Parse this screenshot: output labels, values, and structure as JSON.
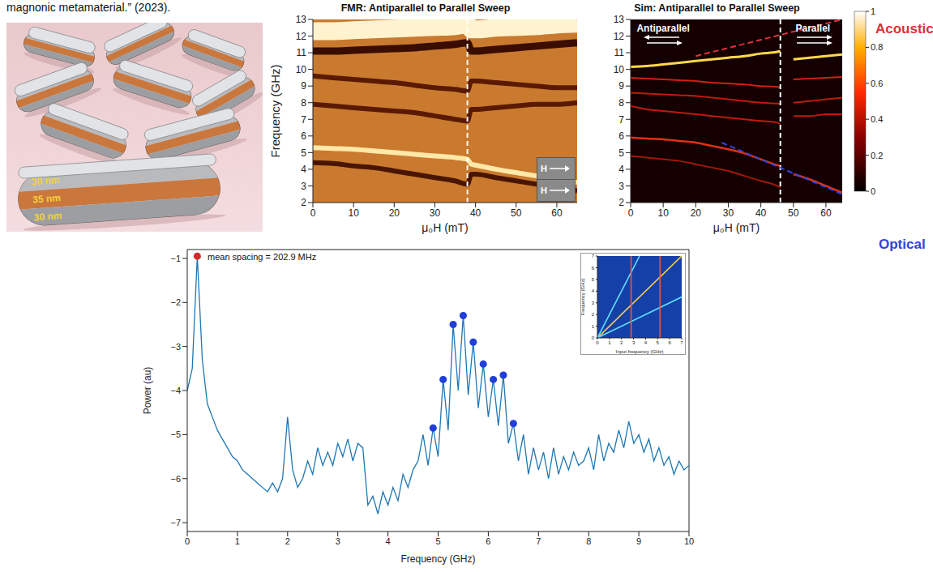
{
  "caption": "magnonic metamaterial.” (2023).",
  "image": {
    "layer_labels": [
      "30 nm",
      "35 nm",
      "30 nm"
    ]
  },
  "chart_data": [
    {
      "type": "line",
      "title": "FMR: Antiparallel to Parallel Sweep",
      "x_label": "μ₀H (mT)",
      "y_label": "Frequency (GHz)",
      "x": [
        0,
        5,
        10,
        15,
        20,
        25,
        30,
        35,
        38,
        39,
        40,
        45,
        50,
        55,
        60,
        65
      ],
      "series": [
        {
          "color": "#fff3cf",
          "values": [
            12.3,
            12.3,
            12.35,
            12.4,
            12.45,
            12.5,
            12.55,
            12.6,
            12.7,
            12.4,
            12.4,
            12.5,
            12.55,
            12.6,
            12.7,
            12.75
          ]
        },
        {
          "color": "#3a0d00",
          "values": [
            11.1,
            11.1,
            11.15,
            11.2,
            11.25,
            11.3,
            11.4,
            11.5,
            11.6,
            11.1,
            11.1,
            11.2,
            11.3,
            11.4,
            11.5,
            11.6
          ]
        },
        {
          "color": "#5a1a02",
          "values": [
            9.6,
            9.5,
            9.4,
            9.3,
            9.2,
            9.05,
            8.9,
            8.8,
            8.7,
            9.3,
            9.3,
            9.2,
            9.1,
            9.0,
            8.9,
            8.9
          ]
        },
        {
          "color": "#5a1a02",
          "values": [
            7.9,
            7.8,
            7.7,
            7.6,
            7.5,
            7.4,
            7.2,
            7.0,
            6.9,
            7.6,
            7.6,
            7.7,
            7.8,
            7.9,
            7.9,
            8.0
          ]
        },
        {
          "color": "#ffe8a8",
          "values": [
            5.3,
            5.25,
            5.2,
            5.1,
            5.0,
            4.9,
            4.8,
            4.7,
            4.6,
            4.3,
            4.25,
            4.0,
            3.8,
            3.6,
            3.4,
            3.2
          ]
        },
        {
          "color": "#4a1500",
          "values": [
            4.4,
            4.35,
            4.2,
            4.1,
            3.9,
            3.7,
            3.5,
            3.3,
            3.1,
            3.7,
            3.7,
            3.5,
            3.3,
            3.1,
            2.9,
            2.7
          ]
        }
      ],
      "xlim": [
        0,
        65
      ],
      "xticks": [
        0,
        10,
        20,
        30,
        40,
        50,
        60
      ],
      "ylim": [
        2,
        13
      ],
      "yticks": [
        2,
        3,
        4,
        5,
        6,
        7,
        8,
        9,
        10,
        11,
        12,
        13
      ],
      "grid": false,
      "annotations": [
        {
          "type": "vline",
          "x": 38,
          "color": "#ffffff"
        }
      ],
      "field_icons": [
        "H",
        "H"
      ]
    },
    {
      "type": "line",
      "title": "Sim: Antiparallel to Parallel Sweep",
      "x_label": "μ₀H (mT)",
      "x": [
        0,
        5,
        10,
        15,
        20,
        25,
        30,
        35,
        40,
        45,
        46,
        47,
        50,
        55,
        60,
        65
      ],
      "series": [
        {
          "color": "#ffd84a",
          "values": [
            10.15,
            10.2,
            10.3,
            10.4,
            10.5,
            10.6,
            10.7,
            10.8,
            10.95,
            11.05,
            11.1,
            null,
            10.6,
            10.7,
            10.8,
            10.9
          ]
        },
        {
          "color": "#d02010",
          "values": [
            9.5,
            9.45,
            9.4,
            9.35,
            9.3,
            9.2,
            9.15,
            9.1,
            9.0,
            8.95,
            8.9,
            null,
            9.4,
            9.45,
            9.5,
            9.55
          ]
        },
        {
          "color": "#c01a0c",
          "values": [
            8.6,
            8.55,
            8.5,
            8.45,
            8.4,
            8.3,
            8.2,
            8.1,
            8.0,
            7.95,
            7.9,
            null,
            8.0,
            8.1,
            8.2,
            8.3
          ]
        },
        {
          "color": "#c01a0c",
          "values": [
            7.8,
            7.6,
            7.5,
            7.4,
            7.3,
            7.2,
            7.1,
            7.0,
            6.9,
            6.8,
            6.7,
            null,
            7.2,
            7.2,
            7.3,
            7.3
          ]
        },
        {
          "color": "#e03012",
          "values": [
            5.9,
            5.85,
            5.8,
            5.7,
            5.6,
            5.4,
            5.2,
            4.95,
            4.6,
            4.25,
            4.2,
            null,
            3.7,
            3.4,
            3.0,
            2.6
          ]
        },
        {
          "color": "#a01808",
          "values": [
            4.8,
            4.7,
            4.6,
            4.5,
            4.3,
            4.1,
            3.9,
            3.6,
            3.3,
            3.0,
            2.9,
            null,
            null,
            null,
            null,
            null
          ]
        }
      ],
      "xlim": [
        0,
        65
      ],
      "xticks": [
        0,
        10,
        20,
        30,
        40,
        50,
        60
      ],
      "ylim": [
        2,
        13
      ],
      "yticks": [
        2,
        3,
        4,
        5,
        6,
        7,
        8,
        9,
        10,
        11,
        12,
        13
      ],
      "grid": false,
      "annotations": [
        {
          "type": "vline",
          "x": 46,
          "color": "#ffffff"
        },
        {
          "type": "text",
          "text": "Antiparallel",
          "x": 10,
          "y": 12.3,
          "arrow": "left"
        },
        {
          "type": "text",
          "text": "Parallel",
          "x": 56,
          "y": 12.3,
          "arrow": "right"
        },
        {
          "type": "segment",
          "label": "Acoustic",
          "color": "#e0303a",
          "x": [
            20,
            65
          ],
          "y": [
            10.8,
            13
          ]
        },
        {
          "type": "segment",
          "label": "Optical",
          "color": "#3344dd",
          "x": [
            28,
            65
          ],
          "y": [
            5.6,
            2.5
          ]
        }
      ],
      "colorbar": {
        "range": [
          0,
          1
        ],
        "ticks": [
          0,
          0.2,
          0.4,
          0.6,
          0.8,
          1
        ]
      }
    },
    {
      "type": "line",
      "annotation": "mean spacing = 202.9 MHz",
      "x_label": "Frequency (GHz)",
      "y_label": "Power (au)",
      "color": "#1f77b4",
      "x": [
        0,
        0.1,
        0.2,
        0.3,
        0.4,
        0.5,
        0.6,
        0.7,
        0.8,
        0.9,
        1,
        1.1,
        1.2,
        1.3,
        1.4,
        1.5,
        1.6,
        1.7,
        1.8,
        1.9,
        2,
        2.1,
        2.2,
        2.3,
        2.4,
        2.5,
        2.6,
        2.7,
        2.8,
        2.9,
        3,
        3.1,
        3.2,
        3.3,
        3.4,
        3.5,
        3.6,
        3.7,
        3.8,
        3.9,
        4,
        4.1,
        4.2,
        4.3,
        4.4,
        4.5,
        4.6,
        4.7,
        4.8,
        4.9,
        5,
        5.1,
        5.2,
        5.3,
        5.4,
        5.5,
        5.6,
        5.7,
        5.8,
        5.9,
        6,
        6.1,
        6.2,
        6.3,
        6.4,
        6.5,
        6.6,
        6.7,
        6.8,
        6.9,
        7,
        7.1,
        7.2,
        7.3,
        7.4,
        7.5,
        7.6,
        7.7,
        7.8,
        7.9,
        8,
        8.1,
        8.2,
        8.3,
        8.4,
        8.5,
        8.6,
        8.7,
        8.8,
        8.9,
        9,
        9.1,
        9.2,
        9.3,
        9.4,
        9.5,
        9.6,
        9.7,
        9.8,
        9.9,
        10
      ],
      "values": [
        -4.0,
        -3.5,
        -0.95,
        -3.3,
        -4.3,
        -4.6,
        -4.9,
        -5.1,
        -5.3,
        -5.5,
        -5.6,
        -5.8,
        -5.9,
        -6.0,
        -6.1,
        -6.2,
        -6.3,
        -6.1,
        -6.3,
        -6.0,
        -4.6,
        -5.8,
        -6.2,
        -6.0,
        -5.6,
        -5.9,
        -5.3,
        -5.7,
        -5.4,
        -5.7,
        -5.2,
        -5.5,
        -5.1,
        -5.6,
        -5.2,
        -5.3,
        -6.6,
        -6.4,
        -6.8,
        -6.3,
        -6.6,
        -6.2,
        -6.5,
        -5.9,
        -6.2,
        -5.8,
        -5.6,
        -5.0,
        -5.7,
        -4.85,
        -5.5,
        -3.75,
        -4.9,
        -2.5,
        -4.0,
        -2.3,
        -4.1,
        -2.9,
        -4.4,
        -3.4,
        -4.6,
        -3.75,
        -4.8,
        -3.65,
        -5.2,
        -4.75,
        -5.6,
        -5.0,
        -5.9,
        -5.3,
        -5.8,
        -5.4,
        -6.0,
        -5.3,
        -5.9,
        -5.5,
        -5.8,
        -5.4,
        -5.7,
        -5.6,
        -5.3,
        -5.8,
        -5.0,
        -5.6,
        -5.2,
        -5.4,
        -4.9,
        -5.3,
        -4.7,
        -5.2,
        -5.0,
        -5.4,
        -5.1,
        -5.6,
        -5.3,
        -5.7,
        -5.5,
        -5.9,
        -5.6,
        -5.8,
        -5.7
      ],
      "peaks": {
        "x": [
          0.2,
          4.9,
          5.1,
          5.3,
          5.5,
          5.7,
          5.9,
          6.1,
          6.3,
          6.5
        ],
        "y": [
          -0.95,
          -4.85,
          -3.75,
          -2.5,
          -2.3,
          -2.9,
          -3.4,
          -3.75,
          -3.65,
          -4.75
        ],
        "colors": [
          "#d62728",
          "#1f3fd8",
          "#1f3fd8",
          "#1f3fd8",
          "#1f3fd8",
          "#1f3fd8",
          "#1f3fd8",
          "#1f3fd8",
          "#1f3fd8",
          "#1f3fd8"
        ]
      },
      "xlim": [
        0,
        10
      ],
      "xticks": [
        0,
        1,
        2,
        3,
        4,
        5,
        6,
        7,
        8,
        9,
        10
      ],
      "ylim": [
        -7.2,
        -0.8
      ],
      "yticks": [
        {
          "value": -7,
          "label": "−7"
        },
        {
          "value": -6,
          "label": "−6"
        },
        {
          "value": -5,
          "label": "−5"
        },
        {
          "value": -4,
          "label": "−4"
        },
        {
          "value": -3,
          "label": "−3"
        },
        {
          "value": -2,
          "label": "−2"
        },
        {
          "value": -1,
          "label": "−1"
        }
      ],
      "grid": false,
      "inset": {
        "type": "line",
        "x_label": "Input frequency (GHz)",
        "y_label": "Frequency (GHz)",
        "xlim": [
          0,
          7
        ],
        "xticks": [
          0,
          1,
          2,
          3,
          4,
          5,
          6,
          7
        ],
        "ylim": [
          0,
          7
        ],
        "yticks": [
          0,
          1,
          2,
          3,
          4,
          5,
          6,
          7
        ],
        "lines": [
          {
            "color": "#ffd040",
            "x": [
              0,
              7
            ],
            "y": [
              0,
              7
            ]
          },
          {
            "color": "#60e0ff",
            "x": [
              0,
              3.5
            ],
            "y": [
              0,
              7
            ]
          },
          {
            "color": "#60e0ff",
            "x": [
              0,
              7
            ],
            "y": [
              0,
              3.5
            ]
          },
          {
            "color": "#ff5030",
            "x": [
              2.8,
              2.8
            ],
            "y": [
              0,
              7
            ]
          },
          {
            "color": "#ff5030",
            "x": [
              5.2,
              5.2
            ],
            "y": [
              0,
              7
            ]
          }
        ]
      }
    }
  ]
}
